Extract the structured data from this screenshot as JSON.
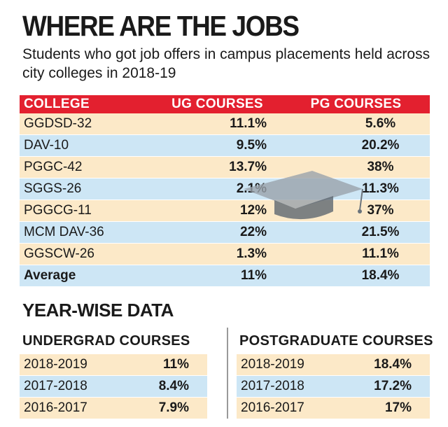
{
  "header": {
    "title": "WHERE ARE THE JOBS",
    "subtitle": "Students who got job offers in campus placements held across city colleges in 2018-19"
  },
  "colors": {
    "header_red": "#e3202f",
    "row_beige": "#fce9c8",
    "row_blue": "#cde6f5"
  },
  "decoration": "graduation-cap-icon",
  "chart_data": [
    {
      "type": "table",
      "columns": [
        "COLLEGE",
        "UG COURSES",
        "PG COURSES"
      ],
      "rows": [
        {
          "college": "GGDSD-32",
          "ug": "11.1%",
          "pg": "5.6%"
        },
        {
          "college": "DAV-10",
          "ug": "9.5%",
          "pg": "20.2%"
        },
        {
          "college": "PGGC-42",
          "ug": "13.7%",
          "pg": "38%"
        },
        {
          "college": "SGGS-26",
          "ug": "2.1%",
          "pg": "11.3%"
        },
        {
          "college": "PGGCG-11",
          "ug": "12%",
          "pg": "37%"
        },
        {
          "college": "MCM DAV-36",
          "ug": "22%",
          "pg": "21.5%"
        },
        {
          "college": "GGSCW-26",
          "ug": "1.3%",
          "pg": "11.1%"
        }
      ],
      "average": {
        "label": "Average",
        "ug": "11%",
        "pg": "18.4%"
      }
    },
    {
      "type": "table",
      "section_title": "YEAR-WISE DATA",
      "title": "UNDERGRAD COURSES",
      "rows": [
        {
          "year": "2018-2019",
          "value": "11%"
        },
        {
          "year": "2017-2018",
          "value": "8.4%"
        },
        {
          "year": "2016-2017",
          "value": "7.9%"
        }
      ]
    },
    {
      "type": "table",
      "title": "POSTGRADUATE COURSES",
      "rows": [
        {
          "year": "2018-2019",
          "value": "18.4%"
        },
        {
          "year": "2017-2018",
          "value": "17.2%"
        },
        {
          "year": "2016-2017",
          "value": "17%"
        }
      ]
    }
  ]
}
